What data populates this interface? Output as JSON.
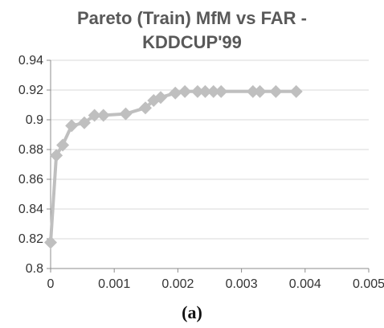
{
  "chart_data": {
    "type": "line",
    "title_lines": [
      "Pareto (Train) MfM vs FAR -",
      "KDDCUP'99"
    ],
    "caption": "(a)",
    "xlabel": "",
    "ylabel": "",
    "xlim": [
      0,
      0.005
    ],
    "ylim": [
      0.8,
      0.94
    ],
    "x_ticks": [
      0,
      0.001,
      0.002,
      0.003,
      0.004,
      0.005
    ],
    "y_ticks": [
      0.8,
      0.82,
      0.84,
      0.86,
      0.88,
      0.9,
      0.92,
      0.94
    ],
    "x_tick_labels": [
      "0",
      "0.001",
      "0.002",
      "0.003",
      "0.004",
      "0.005"
    ],
    "y_tick_labels": [
      "0.8",
      "0.82",
      "0.84",
      "0.86",
      "0.88",
      "0.9",
      "0.92",
      "0.94"
    ],
    "grid": "horizontal",
    "marker": "diamond",
    "series_color": "#bfbfbf",
    "series": [
      {
        "x": [
          0.0,
          9e-05,
          0.00019,
          0.00033,
          0.00053,
          0.00069,
          0.00083,
          0.00118,
          0.00149,
          0.00162,
          0.00173,
          0.00196,
          0.00211,
          0.00231,
          0.00243,
          0.00256,
          0.00268,
          0.00318,
          0.00329,
          0.00354,
          0.00386
        ],
        "y": [
          0.8175,
          0.876,
          0.883,
          0.896,
          0.898,
          0.903,
          0.903,
          0.904,
          0.908,
          0.913,
          0.915,
          0.918,
          0.919,
          0.919,
          0.919,
          0.919,
          0.919,
          0.919,
          0.919,
          0.919,
          0.919
        ]
      }
    ]
  }
}
